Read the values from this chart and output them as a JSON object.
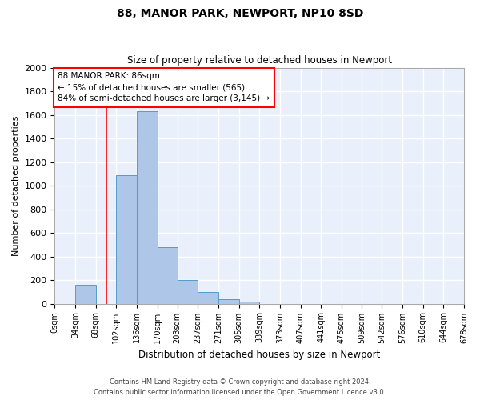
{
  "title1": "88, MANOR PARK, NEWPORT, NP10 8SD",
  "title2": "Size of property relative to detached houses in Newport",
  "xlabel": "Distribution of detached houses by size in Newport",
  "ylabel": "Number of detached properties",
  "bin_edges": [
    0,
    34,
    68,
    102,
    136,
    170,
    203,
    237,
    271,
    305,
    339,
    373,
    407,
    441,
    475,
    509,
    542,
    576,
    610,
    644,
    678
  ],
  "bar_heights": [
    0,
    160,
    0,
    1090,
    1630,
    480,
    200,
    100,
    35,
    20,
    0,
    0,
    0,
    0,
    0,
    0,
    0,
    0,
    0,
    0
  ],
  "bar_color": "#aec6e8",
  "bar_edgecolor": "#5599cc",
  "vline_x": 86,
  "vline_color": "red",
  "annotation_line1": "88 MANOR PARK: 86sqm",
  "annotation_line2": "← 15% of detached houses are smaller (565)",
  "annotation_line3": "84% of semi-detached houses are larger (3,145) →",
  "annotation_box_color": "white",
  "annotation_box_edgecolor": "red",
  "ylim": [
    0,
    2000
  ],
  "yticks": [
    0,
    200,
    400,
    600,
    800,
    1000,
    1200,
    1400,
    1600,
    1800,
    2000
  ],
  "background_color": "#eaf0fb",
  "grid_color": "white",
  "footer1": "Contains HM Land Registry data © Crown copyright and database right 2024.",
  "footer2": "Contains public sector information licensed under the Open Government Licence v3.0."
}
